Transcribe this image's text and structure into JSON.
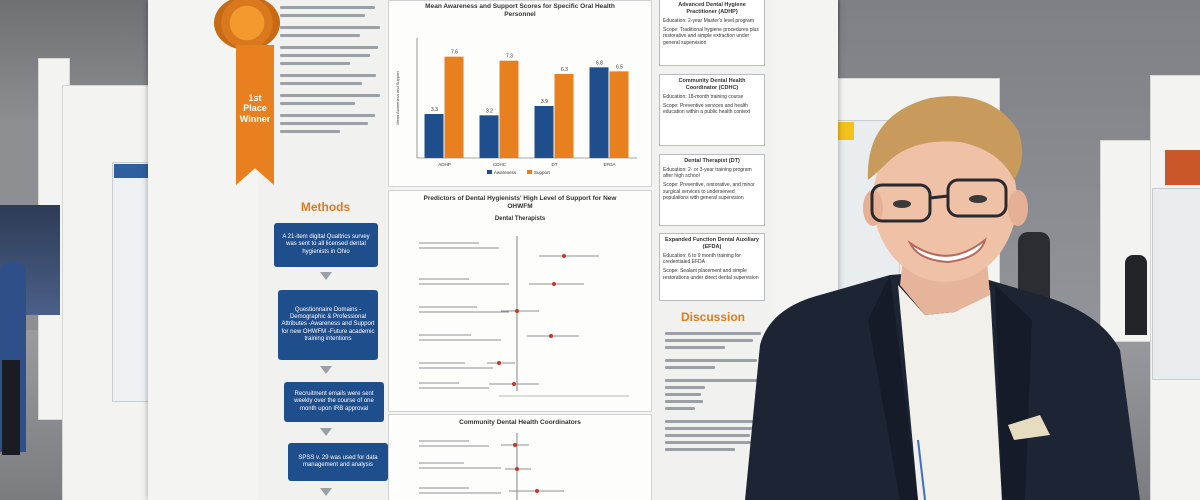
{
  "scene": {
    "description_free": true
  },
  "colors": {
    "navy": "#1f4e8c",
    "orange": "#e8801f",
    "jacket": "#1d2433",
    "hair": "#c89a5b"
  },
  "ribbon": {
    "line1": "1st",
    "line2": "Place",
    "line3": "Winner"
  },
  "poster": {
    "methods_title": "Methods",
    "discussion_title": "Discussion",
    "methods_steps": [
      "A 21-item digital Qualtrics survey was sent to all licensed dental hygienists in Ohio",
      "Questionnaire Domains -Demographic & Professional Attributes -Awareness and Support for new OHWFM -Future academic training intentions",
      "Recruitment emails were sent weekly over the course of one month upon IRB approval",
      "SPSS v. 29 was used for data management and analysis"
    ],
    "bar_chart_title": "Mean Awareness and Support Scores for Specific Oral Health Personnel",
    "forest1_title": "Predictors of Dental Hygienists' High Level of Support for New OHWFM",
    "forest1_subtitle": "Dental Therapists",
    "forest2_title": "Community Dental Health Coordinators",
    "right_boxes": [
      {
        "title": "Advanced Dental Hygiene Practitioner (ADHP)",
        "l1": "Education: 2-year Master's level program",
        "l2": "Scope: Traditional hygiene procedures plus restorative and simple extraction under general supervision"
      },
      {
        "title": "Community Dental Health Coordinator (CDHC)",
        "l1": "Education: 18-month training course",
        "l2": "Scope: Preventive services and health education within a public health context"
      },
      {
        "title": "Dental Therapist (DT)",
        "l1": "Education: 2- or 3-year training program after high school",
        "l2": "Scope: Preventive, restorative, and minor surgical services to underserved populations with general supervision"
      },
      {
        "title": "Expanded Function Dental Auxiliary (EFDA)",
        "l1": "Education: 6 to 9 month training for credentialed EFDA",
        "l2": "Scope: Sealant placement and simple restorations under direct dental supervision"
      }
    ]
  },
  "chart_data": [
    {
      "type": "bar",
      "title": "Mean Awareness and Support Scores for Specific Oral Health Personnel",
      "categories": [
        "ADHP",
        "CDHC",
        "DT",
        "EFDA"
      ],
      "series": [
        {
          "name": "Awareness",
          "values": [
            3.3,
            3.2,
            3.9,
            6.8
          ]
        },
        {
          "name": "Support",
          "values": [
            7.6,
            7.3,
            6.3,
            6.5
          ]
        }
      ],
      "ylabel": "Mean Awareness and Support",
      "ylim": [
        0,
        9
      ]
    }
  ]
}
